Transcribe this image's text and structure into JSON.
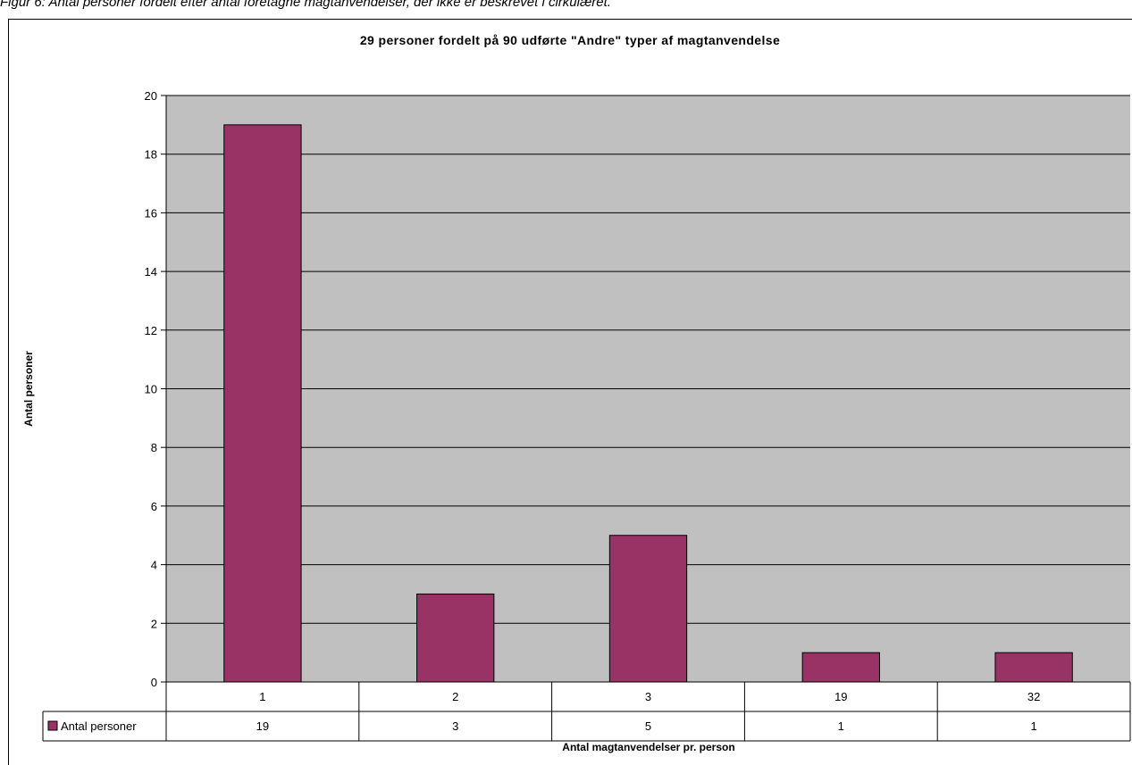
{
  "caption": "Figur 6: Antal personer fordelt efter antal foretagne magtanvendelser, der ikke er beskrevet i cirkulæret.",
  "chart_data": {
    "type": "bar",
    "title": "29 personer fordelt på 90 udførte \"Andre\" typer af magtanvendelse",
    "xlabel": "Antal magtanvendelser pr. person",
    "ylabel": "Antal personer",
    "categories": [
      "1",
      "2",
      "3",
      "19",
      "32"
    ],
    "series": [
      {
        "name": "Antal personer",
        "values": [
          19,
          3,
          5,
          1,
          1
        ],
        "color": "#993366"
      }
    ],
    "ylim": [
      0,
      20
    ],
    "yticks": [
      0,
      2,
      4,
      6,
      8,
      10,
      12,
      14,
      16,
      18,
      20
    ],
    "plot_background": "#c0c0c0",
    "grid": true,
    "data_table": true
  }
}
